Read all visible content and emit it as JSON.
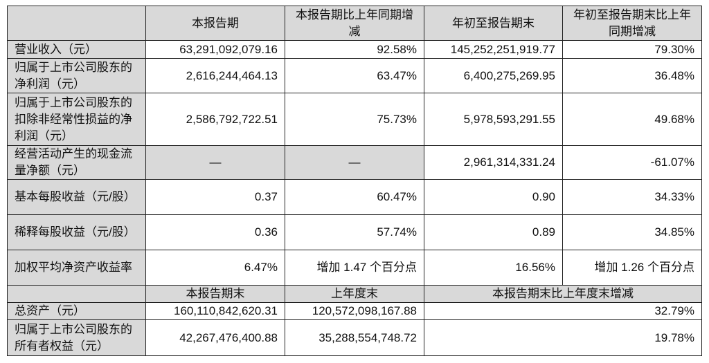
{
  "header": [
    "",
    "本报告期",
    "本报告期比上年同期增减",
    "年初至报告期末",
    "年初至报告期末比上年同期增减"
  ],
  "rows": [
    {
      "label": "营业收入（元）",
      "values": [
        "63,291,092,079.16",
        "92.58%",
        "145,252,251,919.77",
        "79.30%"
      ]
    },
    {
      "label": "归属于上市公司股东的净利润（元）",
      "values": [
        "2,616,244,464.13",
        "63.47%",
        "6,400,275,269.95",
        "36.48%"
      ]
    },
    {
      "label": "归属于上市公司股东的扣除非经常性损益的净利润（元）",
      "values": [
        "2,586,792,722.51",
        "75.73%",
        "5,978,593,291.55",
        "49.68%"
      ]
    },
    {
      "label": "经营活动产生的现金流量净额（元）",
      "values": [
        "—",
        "—",
        "2,961,314,331.24",
        "-61.07%"
      ]
    },
    {
      "label": "基本每股收益（元/股）",
      "values": [
        "0.37",
        "60.47%",
        "0.90",
        "34.33%"
      ]
    },
    {
      "label": "稀释每股收益（元/股）",
      "values": [
        "0.36",
        "57.74%",
        "0.89",
        "34.85%"
      ]
    },
    {
      "label": "加权平均净资产收益率",
      "values": [
        "6.47%",
        "增加 1.47 个百分点",
        "16.56%",
        "增加 1.26 个百分点"
      ]
    }
  ],
  "subheader": [
    "",
    "本报告期末",
    "上年度末",
    "本报告期末比上年度末增减"
  ],
  "balance_rows": [
    {
      "label": "总资产（元）",
      "values": [
        "160,110,842,620.31",
        "120,572,098,167.88",
        "32.79%"
      ]
    },
    {
      "label": "归属于上市公司股东的所有者权益（元）",
      "values": [
        "42,267,476,400.88",
        "35,288,554,748.72",
        "19.78%"
      ]
    }
  ],
  "colors": {
    "header_fill": "#d9d9d9",
    "border": "#222222"
  }
}
